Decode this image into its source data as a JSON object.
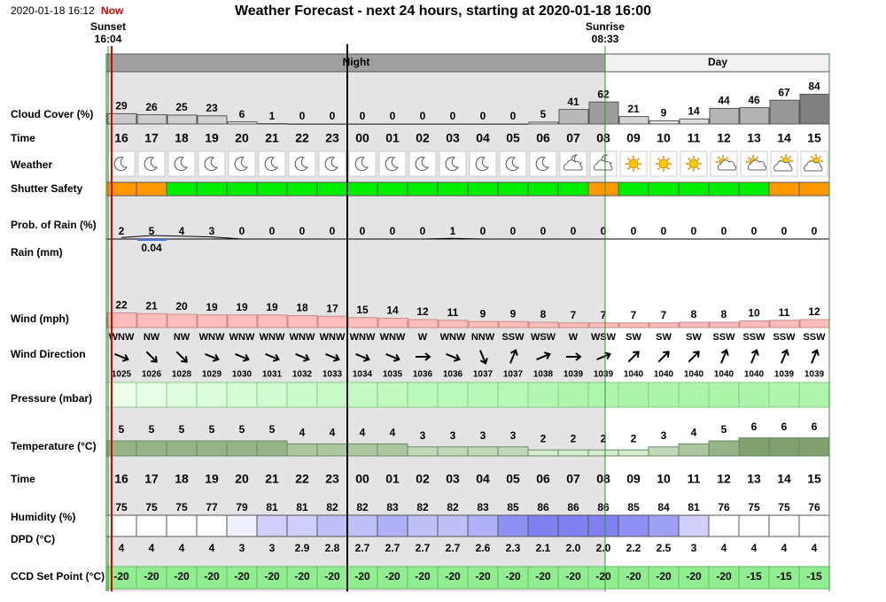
{
  "header": {
    "timestamp": "2020-01-18 16:12",
    "now": "Now",
    "title": "Weather Forecast - next 24 hours, starting at 2020-01-18 16:00"
  },
  "sun": {
    "sunset_label": "Sunset",
    "sunset_time": "16:04",
    "sunrise_label": "Sunrise",
    "sunrise_time": "08:33"
  },
  "periods": {
    "night": "Night",
    "day": "Day"
  },
  "hours": [
    "16",
    "17",
    "18",
    "19",
    "20",
    "21",
    "22",
    "23",
    "00",
    "01",
    "02",
    "03",
    "04",
    "05",
    "06",
    "07",
    "08",
    "09",
    "10",
    "11",
    "12",
    "13",
    "14",
    "15"
  ],
  "rows": {
    "cloud_cover": {
      "label": "Cloud Cover (%)",
      "values": [
        29,
        26,
        25,
        23,
        6,
        1,
        0,
        0,
        0,
        0,
        0,
        0,
        0,
        0,
        5,
        41,
        62,
        21,
        9,
        14,
        44,
        46,
        67,
        84
      ]
    },
    "time": {
      "label": "Time"
    },
    "weather": {
      "label": "Weather",
      "icons": [
        "moon",
        "moon",
        "moon",
        "moon",
        "moon",
        "moon",
        "moon",
        "moon",
        "moon",
        "moon",
        "moon",
        "moon",
        "moon",
        "moon",
        "moon",
        "cloud-moon",
        "cloud-moon",
        "sun",
        "sun",
        "sun",
        "sun-cloud",
        "sun-cloud",
        "cloud-sun",
        "cloud-sun"
      ]
    },
    "shutter_safety": {
      "label": "Shutter Safety",
      "colors": [
        "#ff9900",
        "#ff9900",
        "#00ee00",
        "#00ee00",
        "#00ee00",
        "#00ee00",
        "#00ee00",
        "#00ee00",
        "#00ee00",
        "#00ee00",
        "#00ee00",
        "#00ee00",
        "#00ee00",
        "#00ee00",
        "#00ee00",
        "#00ee00",
        "#ff9900",
        "#00ee00",
        "#00ee00",
        "#00ee00",
        "#00ee00",
        "#00ee00",
        "#ff9900",
        "#ff9900"
      ]
    },
    "rain_probability": {
      "label": "Prob. of Rain (%)",
      "values": [
        2,
        5,
        4,
        3,
        0,
        0,
        0,
        0,
        0,
        0,
        0,
        1,
        0,
        0,
        0,
        0,
        0,
        0,
        0,
        0,
        0,
        0,
        0,
        0
      ]
    },
    "rain": {
      "label": "Rain (mm)",
      "values": [
        null,
        0.04,
        null,
        null,
        null,
        null,
        null,
        null,
        null,
        null,
        null,
        null,
        null,
        null,
        null,
        null,
        null,
        null,
        null,
        null,
        null,
        null,
        null,
        null
      ]
    },
    "wind": {
      "label": "Wind (mph)",
      "values": [
        22,
        21,
        20,
        19,
        19,
        19,
        18,
        17,
        15,
        14,
        12,
        11,
        9,
        9,
        8,
        7,
        7,
        7,
        7,
        8,
        8,
        10,
        11,
        12
      ]
    },
    "wind_direction": {
      "label": "Wind Direction",
      "values": [
        "WNW",
        "NW",
        "NW",
        "WNW",
        "WNW",
        "WNW",
        "WNW",
        "WNW",
        "WNW",
        "WNW",
        "W",
        "WNW",
        "NNW",
        "SSW",
        "WSW",
        "W",
        "WSW",
        "SW",
        "SW",
        "SW",
        "SSW",
        "SSW",
        "SSW",
        "SSW"
      ]
    },
    "pressure": {
      "label": "Pressure (mbar)",
      "values": [
        1025,
        1026,
        1028,
        1029,
        1030,
        1031,
        1032,
        1033,
        1034,
        1035,
        1036,
        1036,
        1037,
        1037,
        1038,
        1039,
        1039,
        1040,
        1040,
        1040,
        1040,
        1040,
        1039,
        1039
      ]
    },
    "temperature": {
      "label": "Temperature (°C)",
      "values": [
        5,
        5,
        5,
        5,
        5,
        5,
        4,
        4,
        4,
        4,
        3,
        3,
        3,
        3,
        2,
        2,
        2,
        2,
        3,
        4,
        5,
        6,
        6,
        6
      ]
    },
    "time_2": {
      "label": "Time"
    },
    "humidity": {
      "label": "Humidity (%)",
      "values": [
        75,
        75,
        75,
        77,
        79,
        81,
        81,
        82,
        82,
        83,
        82,
        82,
        83,
        85,
        86,
        86,
        86,
        85,
        84,
        81,
        76,
        75,
        75,
        76
      ]
    },
    "dew_point_depression": {
      "label": "DPD (°C)",
      "values": [
        4,
        4,
        4,
        4,
        3,
        3,
        2.9,
        2.8,
        2.7,
        2.7,
        2.7,
        2.7,
        2.6,
        2.3,
        2.1,
        2.0,
        2.0,
        2.2,
        2.5,
        3,
        4,
        4,
        4,
        4
      ],
      "value_labels": [
        "4",
        "4",
        "4",
        "4",
        "3",
        "3",
        "2.9",
        "2.8",
        "2.7",
        "2.7",
        "2.7",
        "2.7",
        "2.6",
        "2.3",
        "2.1",
        "2.0",
        "2.0",
        "2.2",
        "2.5",
        "3",
        "4",
        "4",
        "4",
        "4"
      ]
    },
    "ccd_set_point": {
      "label": "CCD Set Point (°C)",
      "values": [
        -20,
        -20,
        -20,
        -20,
        -20,
        -20,
        -20,
        -20,
        -20,
        -20,
        -20,
        -20,
        -20,
        -20,
        -20,
        -20,
        -20,
        -20,
        -20,
        -20,
        -20,
        -15,
        -15,
        -15
      ]
    }
  }
}
